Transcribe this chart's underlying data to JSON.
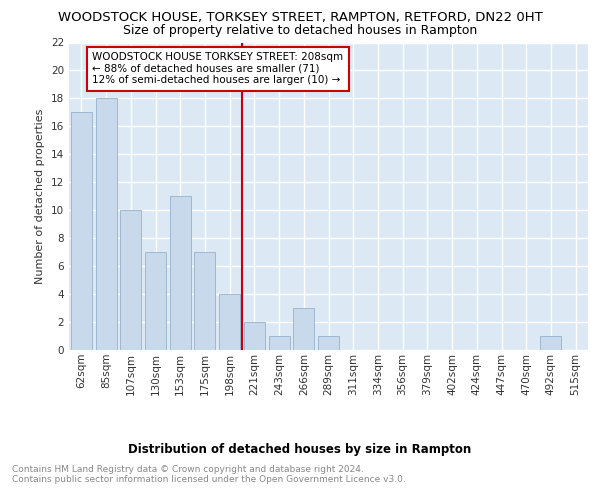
{
  "title": "WOODSTOCK HOUSE, TORKSEY STREET, RAMPTON, RETFORD, DN22 0HT",
  "subtitle": "Size of property relative to detached houses in Rampton",
  "xlabel": "Distribution of detached houses by size in Rampton",
  "ylabel": "Number of detached properties",
  "bar_labels": [
    "62sqm",
    "85sqm",
    "107sqm",
    "130sqm",
    "153sqm",
    "175sqm",
    "198sqm",
    "221sqm",
    "243sqm",
    "266sqm",
    "289sqm",
    "311sqm",
    "334sqm",
    "356sqm",
    "379sqm",
    "402sqm",
    "424sqm",
    "447sqm",
    "470sqm",
    "492sqm",
    "515sqm"
  ],
  "bar_values": [
    17,
    18,
    10,
    7,
    11,
    7,
    4,
    2,
    1,
    3,
    1,
    0,
    0,
    0,
    0,
    0,
    0,
    0,
    0,
    1,
    0
  ],
  "bar_color": "#c8d9eb",
  "bar_edgecolor": "#a0b8d0",
  "annotation_text": "WOODSTOCK HOUSE TORKSEY STREET: 208sqm\n← 88% of detached houses are smaller (71)\n12% of semi-detached houses are larger (10) →",
  "annotation_box_color": "#ffffff",
  "annotation_box_edgecolor": "#cc0000",
  "ref_line_color": "#cc0000",
  "ylim": [
    0,
    22
  ],
  "yticks": [
    0,
    2,
    4,
    6,
    8,
    10,
    12,
    14,
    16,
    18,
    20,
    22
  ],
  "plot_background_color": "#dce9f5",
  "grid_color": "#ffffff",
  "footer": "Contains HM Land Registry data © Crown copyright and database right 2024.\nContains public sector information licensed under the Open Government Licence v3.0.",
  "title_fontsize": 9.5,
  "subtitle_fontsize": 9,
  "xlabel_fontsize": 8.5,
  "ylabel_fontsize": 8,
  "tick_fontsize": 7.5,
  "annotation_fontsize": 7.5,
  "footer_fontsize": 6.5
}
